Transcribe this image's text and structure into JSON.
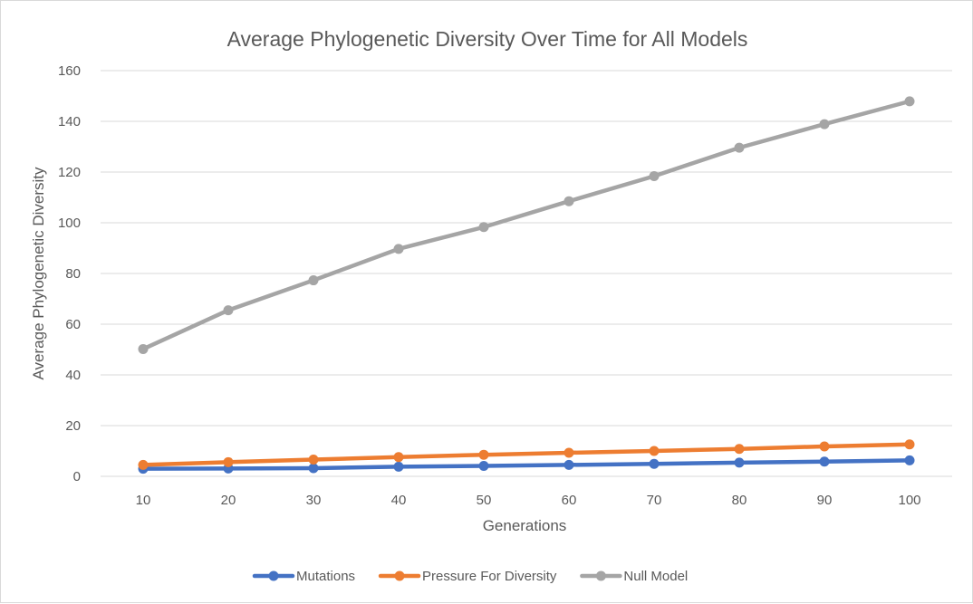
{
  "chart_data": {
    "type": "line",
    "title": "Average Phylogenetic Diversity Over Time for All Models",
    "xlabel": "Generations",
    "ylabel": "Average Phylogenetic Diversity",
    "x": [
      10,
      20,
      30,
      40,
      50,
      60,
      70,
      80,
      90,
      100
    ],
    "ylim": [
      0,
      160
    ],
    "yticks": [
      0,
      20,
      40,
      60,
      80,
      100,
      120,
      140,
      160
    ],
    "grid": true,
    "legend_position": "bottom",
    "series": [
      {
        "name": "Mutations",
        "color": "#4472c4",
        "values": [
          3.0,
          3.1,
          3.2,
          3.8,
          4.1,
          4.5,
          4.9,
          5.4,
          5.8,
          6.3
        ]
      },
      {
        "name": "Pressure For Diversity",
        "color": "#ed7d31",
        "values": [
          4.5,
          5.6,
          6.6,
          7.6,
          8.5,
          9.3,
          10.0,
          10.8,
          11.8,
          12.6
        ]
      },
      {
        "name": "Null Model",
        "color": "#a5a5a5",
        "values": [
          50.2,
          65.5,
          77.3,
          89.7,
          98.3,
          108.5,
          118.4,
          129.6,
          138.9,
          147.9
        ]
      }
    ]
  }
}
